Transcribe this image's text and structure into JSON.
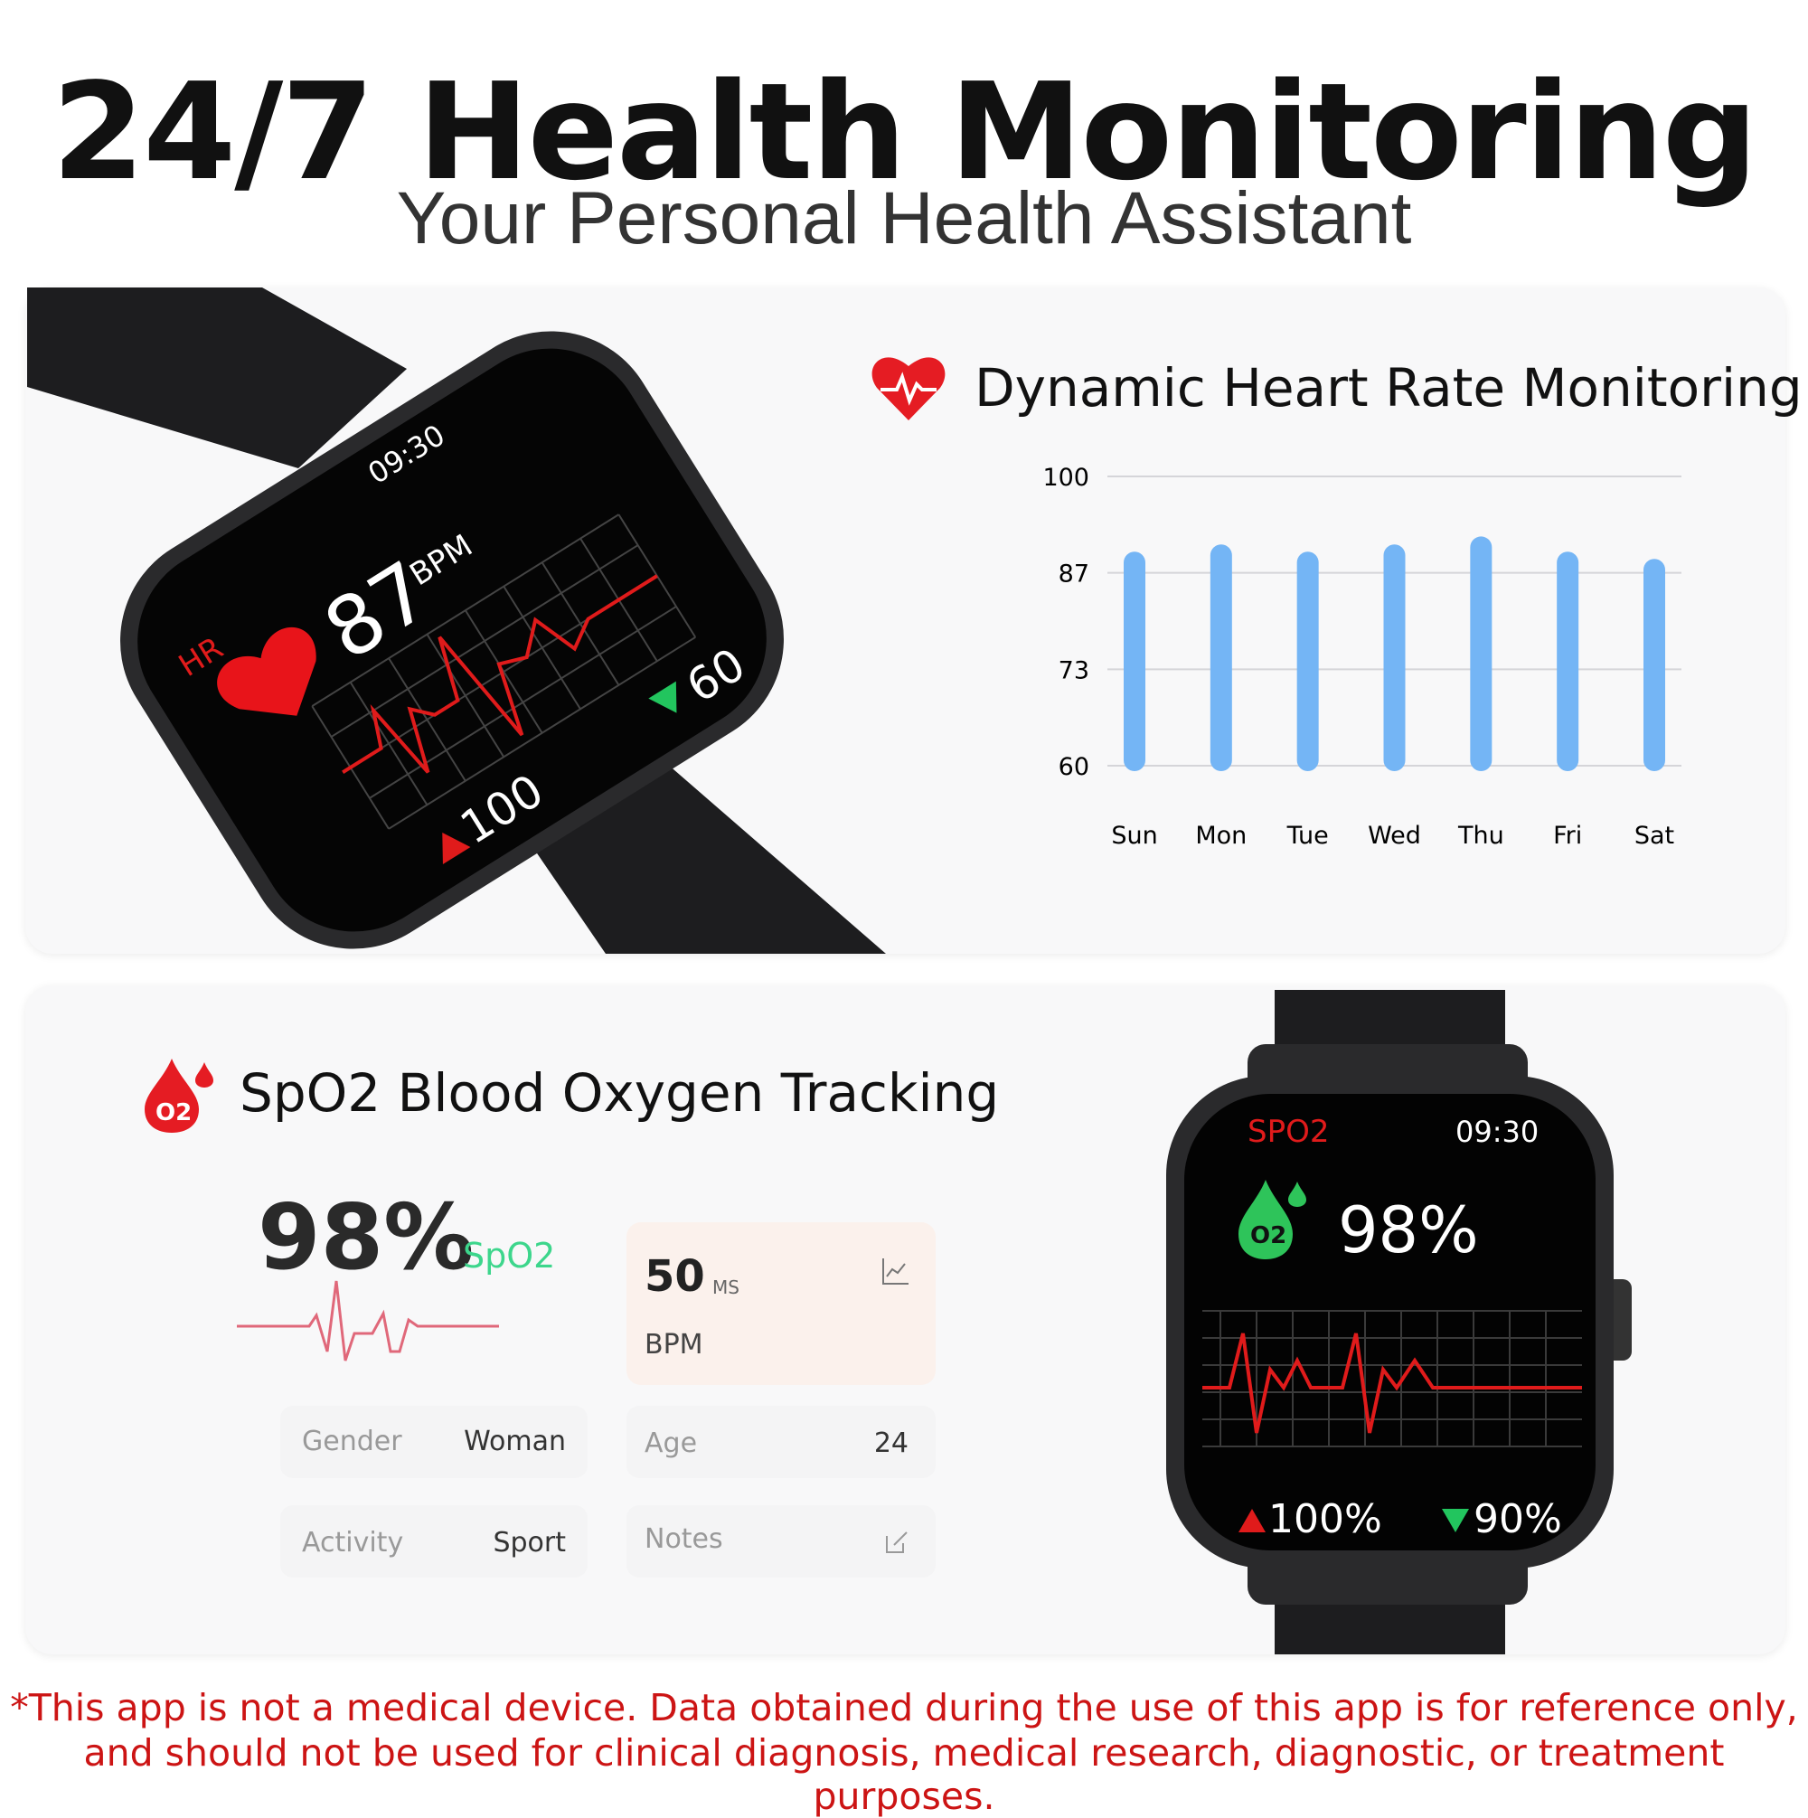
{
  "header": {
    "title": "24/7 Health Monitoring",
    "subtitle": "Your Personal Health Assistant"
  },
  "heart_section": {
    "title": "Dynamic Heart Rate Monitoring",
    "icon": "heart-pulse-icon",
    "watch": {
      "label": "HR",
      "time": "09:30",
      "value": "87",
      "unit": "BPM",
      "low": "60",
      "high": "100"
    }
  },
  "chart_data": {
    "type": "bar",
    "categories": [
      "Sun",
      "Mon",
      "Tue",
      "Wed",
      "Thu",
      "Fri",
      "Sat"
    ],
    "values": [
      89.6,
      90.6,
      89.6,
      90.6,
      91.7,
      89.6,
      88.6
    ],
    "yticks": [
      "100",
      "87",
      "73",
      "60"
    ],
    "ylim": [
      60,
      100
    ],
    "grid": true,
    "bar_color": "#74b5f5"
  },
  "spo2_section": {
    "title": "SpO2 Blood Oxygen Tracking",
    "icon": "o2-drop-icon",
    "icon_text": "O2",
    "value": "98%",
    "value_label": "SpO2",
    "accent": "#3dd68c",
    "card": {
      "value": "50",
      "unit": "MS",
      "label": "BPM"
    },
    "rows": [
      {
        "label": "Gender",
        "value": "Woman"
      },
      {
        "label": "Age",
        "value": "24"
      },
      {
        "label": "Activity",
        "value": "Sport"
      },
      {
        "label": "Notes",
        "value": ""
      }
    ],
    "watch": {
      "label": "SPO2",
      "time": "09:30",
      "value": "98%",
      "high": "100%",
      "low": "90%"
    }
  },
  "disclaimer": {
    "line1": "*This app is not a medical device. Data obtained during the use of this app is for reference only,",
    "line2": "and should not be used for clinical diagnosis, medical research, diagnostic, or treatment purposes."
  }
}
